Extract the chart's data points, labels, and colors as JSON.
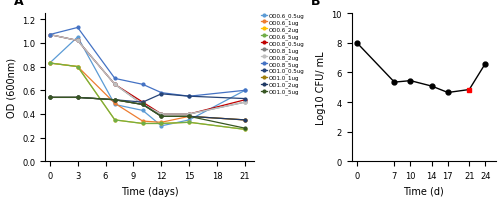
{
  "panel_A": {
    "title": "A",
    "xlabel": "Time (days)",
    "ylabel": "OD (600nm)",
    "x": [
      0,
      3,
      7,
      10,
      12,
      15,
      21
    ],
    "series": [
      {
        "label": "OD0.6_0.5ug",
        "color": "#5B9BD5",
        "values": [
          0.83,
          1.05,
          0.48,
          0.43,
          0.3,
          0.35,
          0.6
        ]
      },
      {
        "label": "OD0.6_1ug",
        "color": "#ED7D31",
        "values": [
          0.83,
          0.8,
          0.49,
          0.34,
          0.33,
          0.38,
          0.35
        ]
      },
      {
        "label": "OD0.6_2ug",
        "color": "#FFC000",
        "values": [
          0.83,
          0.8,
          0.35,
          0.32,
          0.32,
          0.33,
          0.27
        ]
      },
      {
        "label": "OD0.6_5ug",
        "color": "#70AD47",
        "values": [
          0.83,
          0.8,
          0.35,
          0.32,
          0.32,
          0.33,
          0.27
        ]
      },
      {
        "label": "OD0.8_0.5ug",
        "color": "#C00000",
        "values": [
          1.07,
          1.02,
          0.65,
          0.5,
          0.4,
          0.4,
          0.52
        ]
      },
      {
        "label": "OD0.8_1ug",
        "color": "#7F7F7F",
        "values": [
          1.07,
          1.02,
          0.65,
          0.48,
          0.4,
          0.4,
          0.5
        ]
      },
      {
        "label": "OD0.8_2ug",
        "color": "#C0C0C0",
        "values": [
          1.07,
          1.02,
          0.65,
          0.48,
          0.4,
          0.4,
          0.5
        ]
      },
      {
        "label": "OD0.8_5ug",
        "color": "#4472C4",
        "values": [
          1.07,
          1.13,
          0.7,
          0.65,
          0.58,
          0.55,
          0.6
        ]
      },
      {
        "label": "OD1.0_0.5ug",
        "color": "#264478",
        "values": [
          0.54,
          0.54,
          0.52,
          0.5,
          0.57,
          0.55,
          0.53
        ]
      },
      {
        "label": "OD1.0_1ug",
        "color": "#9E7D0A",
        "values": [
          0.54,
          0.54,
          0.52,
          0.48,
          0.38,
          0.38,
          0.35
        ]
      },
      {
        "label": "OD1.0_2ug",
        "color": "#1F3864",
        "values": [
          0.54,
          0.54,
          0.52,
          0.48,
          0.38,
          0.38,
          0.35
        ]
      },
      {
        "label": "OD1.0_5ug",
        "color": "#375623",
        "values": [
          0.54,
          0.54,
          0.52,
          0.48,
          0.38,
          0.38,
          0.28
        ]
      }
    ],
    "xlim": [
      -0.5,
      22
    ],
    "ylim": [
      0,
      1.25
    ],
    "xticks": [
      0,
      3,
      6,
      9,
      12,
      15,
      18,
      21
    ],
    "yticks": [
      0,
      0.2,
      0.4,
      0.6,
      0.8,
      1.0,
      1.2
    ]
  },
  "panel_B": {
    "title": "B",
    "xlabel": "Time (d)",
    "ylabel": "Log10 CFU/ mL",
    "x": [
      0,
      7,
      10,
      14,
      17,
      21,
      24
    ],
    "y": [
      8.0,
      5.35,
      5.45,
      5.08,
      4.65,
      4.85,
      6.6
    ],
    "red_point_idx": 5,
    "xlim": [
      -1,
      26
    ],
    "ylim": [
      0,
      10
    ],
    "xticks": [
      0,
      7,
      10,
      14,
      17,
      21,
      24
    ],
    "yticks": [
      0,
      2,
      4,
      6,
      8,
      10
    ]
  }
}
